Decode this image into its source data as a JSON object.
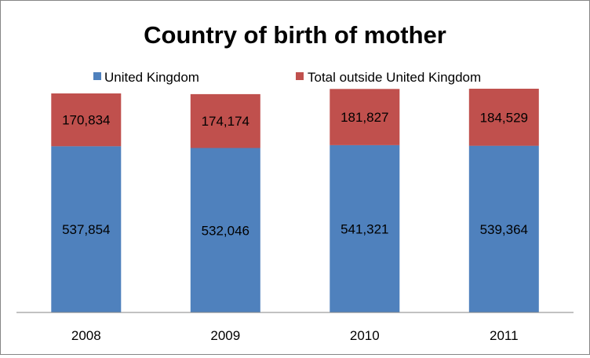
{
  "chart_data": {
    "type": "bar",
    "stacked": true,
    "title": "Country of birth of mother",
    "categories": [
      "2008",
      "2009",
      "2010",
      "2011"
    ],
    "series": [
      {
        "name": "United Kingdom",
        "color": "#4F81BD",
        "values": [
          537854,
          532046,
          541321,
          539364
        ],
        "labels": [
          "537,854",
          "532,046",
          "541,321",
          "539,364"
        ]
      },
      {
        "name": "Total outside United Kingdom",
        "color": "#C0504D",
        "values": [
          170834,
          174174,
          181827,
          184529
        ],
        "labels": [
          "170,834",
          "174,174",
          "181,827",
          "184,529"
        ]
      }
    ],
    "ylim": [
      0,
      800000
    ],
    "legend": "top",
    "grid": false,
    "xlabel": "",
    "ylabel": ""
  }
}
